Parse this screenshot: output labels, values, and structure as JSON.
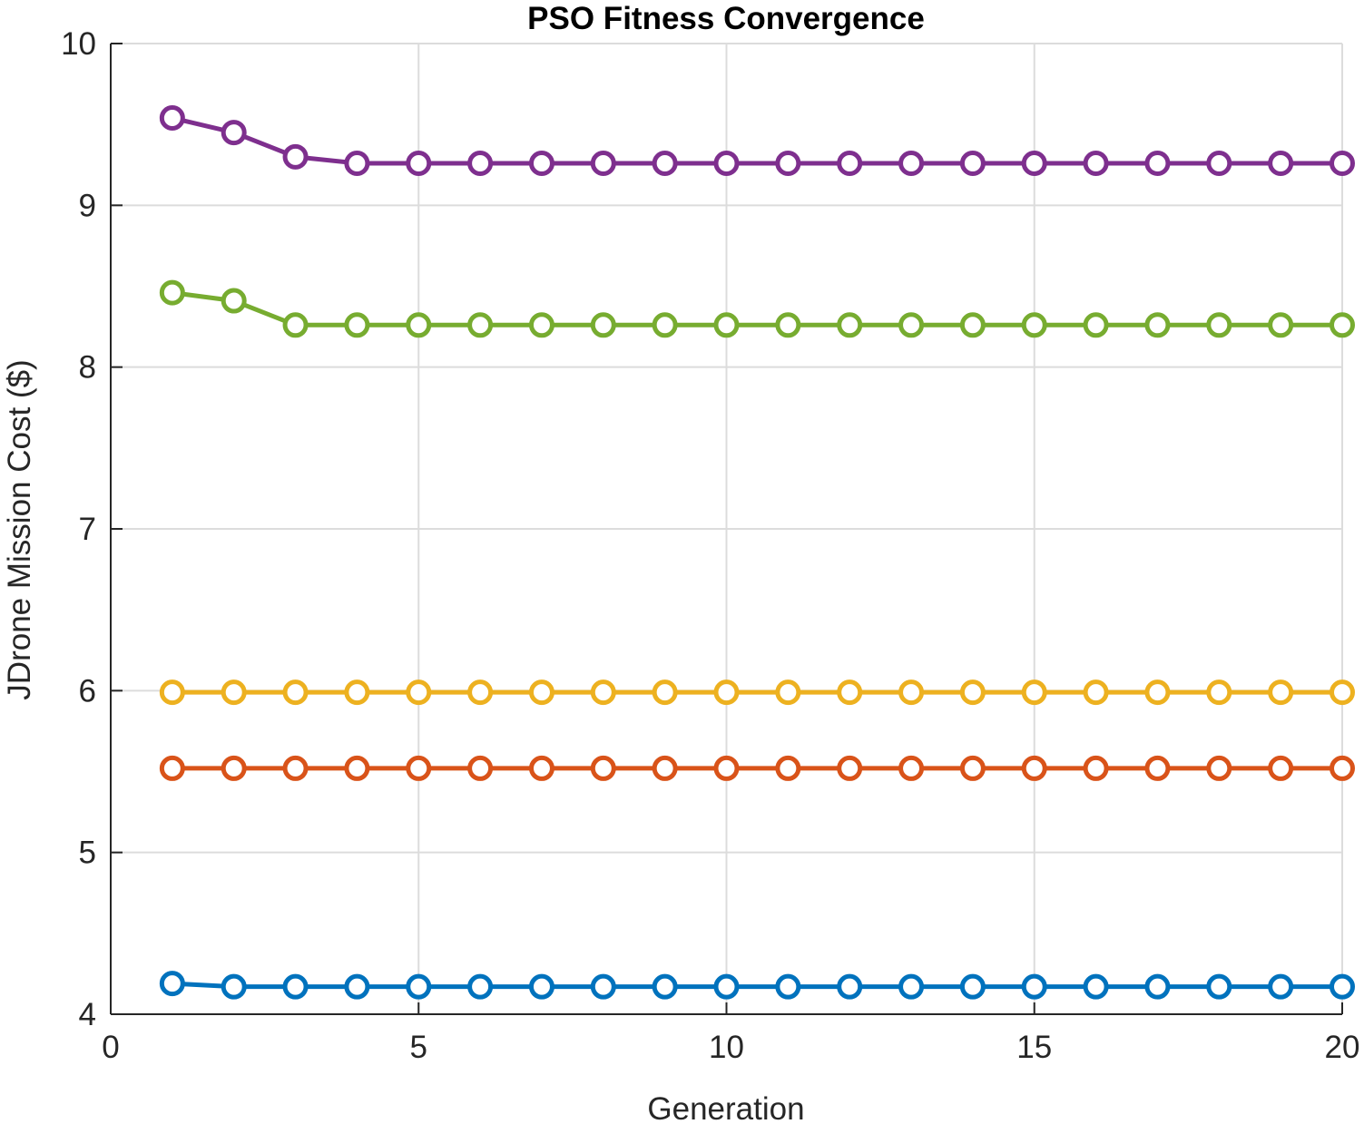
{
  "chart_data": {
    "type": "line",
    "title": "PSO Fitness Convergence",
    "xlabel": "Generation",
    "ylabel": "JDrone Mission Cost ($)",
    "xlim": [
      0,
      20
    ],
    "ylim": [
      4,
      10
    ],
    "xticks": [
      0,
      5,
      10,
      15,
      20
    ],
    "yticks": [
      4,
      5,
      6,
      7,
      8,
      9,
      10
    ],
    "grid": true,
    "box": "open-top-right",
    "marker": "circle",
    "x": [
      1,
      2,
      3,
      4,
      5,
      6,
      7,
      8,
      9,
      10,
      11,
      12,
      13,
      14,
      15,
      16,
      17,
      18,
      19,
      20
    ],
    "series": [
      {
        "color": "#0072BD",
        "values": [
          4.19,
          4.17,
          4.17,
          4.17,
          4.17,
          4.17,
          4.17,
          4.17,
          4.17,
          4.17,
          4.17,
          4.17,
          4.17,
          4.17,
          4.17,
          4.17,
          4.17,
          4.17,
          4.17,
          4.17
        ]
      },
      {
        "color": "#D95319",
        "values": [
          5.52,
          5.52,
          5.52,
          5.52,
          5.52,
          5.52,
          5.52,
          5.52,
          5.52,
          5.52,
          5.52,
          5.52,
          5.52,
          5.52,
          5.52,
          5.52,
          5.52,
          5.52,
          5.52,
          5.52
        ]
      },
      {
        "color": "#EDB120",
        "values": [
          5.99,
          5.99,
          5.99,
          5.99,
          5.99,
          5.99,
          5.99,
          5.99,
          5.99,
          5.99,
          5.99,
          5.99,
          5.99,
          5.99,
          5.99,
          5.99,
          5.99,
          5.99,
          5.99,
          5.99
        ]
      },
      {
        "color": "#7E2F8E",
        "values": [
          9.54,
          9.45,
          9.3,
          9.26,
          9.26,
          9.26,
          9.26,
          9.26,
          9.26,
          9.26,
          9.26,
          9.26,
          9.26,
          9.26,
          9.26,
          9.26,
          9.26,
          9.26,
          9.26,
          9.26
        ]
      },
      {
        "color": "#77AC30",
        "values": [
          8.46,
          8.41,
          8.26,
          8.26,
          8.26,
          8.26,
          8.26,
          8.26,
          8.26,
          8.26,
          8.26,
          8.26,
          8.26,
          8.26,
          8.26,
          8.26,
          8.26,
          8.26,
          8.26,
          8.26
        ]
      }
    ]
  }
}
